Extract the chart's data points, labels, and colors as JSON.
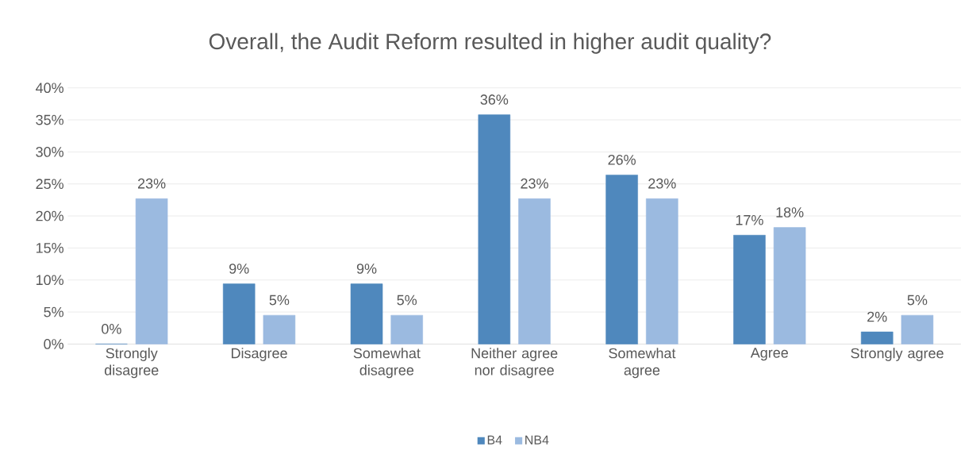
{
  "chart_data": {
    "type": "bar",
    "title": "Overall, the Audit Reform resulted in higher audit quality?",
    "categories": [
      "Strongly disagree",
      "Disagree",
      "Somewhat disagree",
      "Neither agree nor disagree",
      "Somewhat agree",
      "Agree",
      "Strongly agree"
    ],
    "series": [
      {
        "name": "B4",
        "color": "#4f88bd",
        "values": [
          0,
          9.4,
          9.4,
          35.8,
          26.4,
          17.0,
          1.9
        ],
        "value_labels": [
          "0%",
          "9%",
          "9%",
          "36%",
          "26%",
          "17%",
          "2%"
        ]
      },
      {
        "name": "NB4",
        "color": "#9bbae0",
        "values": [
          22.7,
          4.5,
          4.5,
          22.7,
          22.7,
          18.2,
          4.5
        ],
        "value_labels": [
          "23%",
          "5%",
          "5%",
          "23%",
          "23%",
          "18%",
          "5%"
        ]
      }
    ],
    "ylim": [
      0,
      40
    ],
    "yticks": [
      {
        "value": 0,
        "label": "0%"
      },
      {
        "value": 5,
        "label": "5%"
      },
      {
        "value": 10,
        "label": "10%"
      },
      {
        "value": 15,
        "label": "15%"
      },
      {
        "value": 20,
        "label": "20%"
      },
      {
        "value": 25,
        "label": "25%"
      },
      {
        "value": 30,
        "label": "30%"
      },
      {
        "value": 35,
        "label": "35%"
      },
      {
        "value": 40,
        "label": "40%"
      }
    ],
    "grid": "y",
    "legend": "bottom"
  }
}
